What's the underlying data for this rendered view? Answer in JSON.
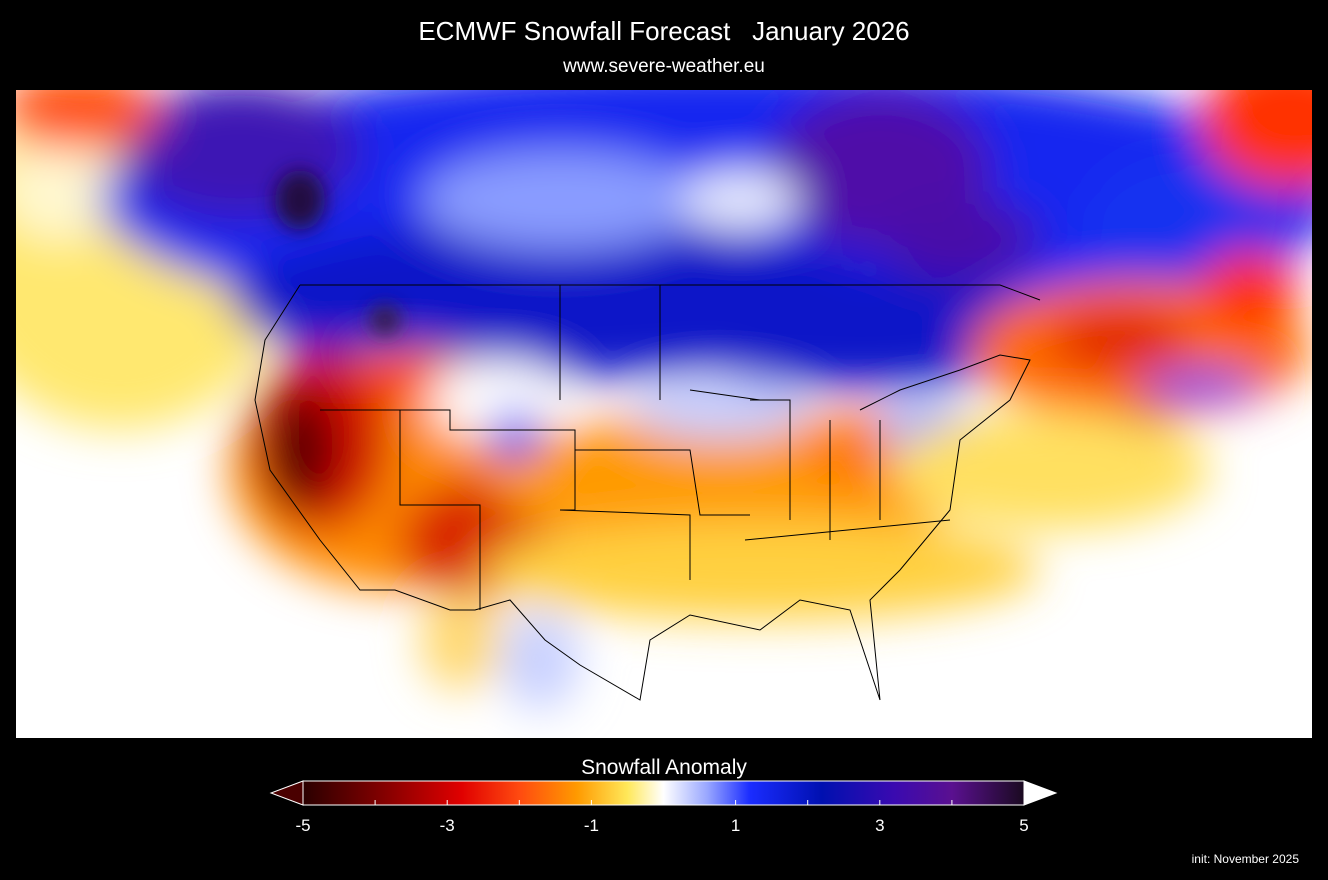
{
  "header": {
    "title": "ECMWF Snowfall Forecast   January 2026",
    "subtitle": "www.severe-weather.eu"
  },
  "colorbar": {
    "title": "Snowfall Anomaly",
    "range": [
      -5,
      5
    ],
    "ticks": [
      -5,
      -3,
      -1,
      1,
      3,
      5
    ],
    "minor_ticks": [
      -4,
      -2,
      0,
      2,
      4
    ]
  },
  "footer": {
    "init": "init: November 2025"
  }
}
